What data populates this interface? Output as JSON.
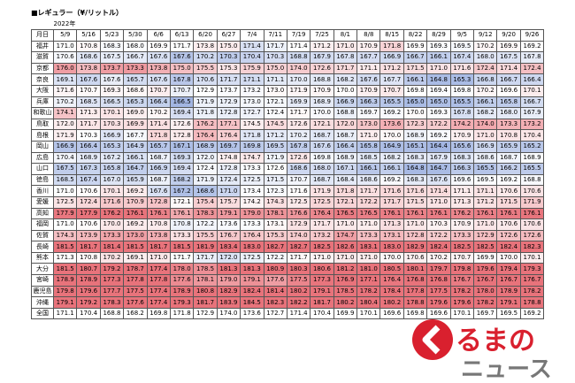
{
  "title": "■レギュラー（¥/リットル）",
  "year_label": "2022年",
  "corner_label": "月日",
  "columns": [
    "5/9",
    "5/16",
    "5/23",
    "5/30",
    "6/6",
    "6/13",
    "6/20",
    "6/27",
    "7/4",
    "7/11",
    "7/19",
    "7/25",
    "8/1",
    "8/8",
    "8/15",
    "8/22",
    "8/29",
    "9/5",
    "9/12",
    "9/20",
    "9/26"
  ],
  "rows": [
    {
      "name": "福井",
      "values": [
        "171.0",
        "170.8",
        "168.3",
        "168.0",
        "169.9",
        "171.7",
        "173.8",
        "175.0",
        "171.4",
        "171.7",
        "171.4",
        "171.2",
        "171.0",
        "170.9",
        "171.8",
        "169.9",
        "169.3",
        "169.5",
        "170.2",
        "169.9",
        "169.2"
      ]
    },
    {
      "name": "滋賀",
      "values": [
        "170.6",
        "168.6",
        "167.5",
        "166.7",
        "167.6",
        "167.6",
        "170.2",
        "170.3",
        "170.4",
        "170.3",
        "168.8",
        "167.9",
        "167.8",
        "167.7",
        "166.9",
        "166.7",
        "166.1",
        "167.4",
        "168.0",
        "167.5",
        "167.8"
      ]
    },
    {
      "name": "京都",
      "values": [
        "176.0",
        "173.8",
        "173.7",
        "173.3",
        "173.8",
        "175.0",
        "175.5",
        "175.3",
        "175.9",
        "175.0",
        "174.0",
        "172.6",
        "171.7",
        "171.1",
        "171.2",
        "171.5",
        "171.0",
        "171.6",
        "172.4",
        "171.4",
        "172.4"
      ]
    },
    {
      "name": "奈良",
      "values": [
        "169.1",
        "167.6",
        "167.6",
        "165.7",
        "167.6",
        "167.8",
        "170.6",
        "171.7",
        "171.1",
        "171.1",
        "170.0",
        "168.8",
        "168.2",
        "167.6",
        "167.7",
        "166.1",
        "164.8",
        "165.3",
        "166.8",
        "166.7",
        "166.4"
      ]
    },
    {
      "name": "大阪",
      "values": [
        "171.6",
        "170.7",
        "169.3",
        "168.6",
        "170.7",
        "170.7",
        "172.9",
        "173.7",
        "173.2",
        "173.0",
        "171.9",
        "170.9",
        "170.0",
        "170.9",
        "170.7",
        "169.8",
        "169.4",
        "169.8",
        "170.2",
        "169.6",
        "170.1"
      ]
    },
    {
      "name": "兵庫",
      "values": [
        "170.2",
        "168.5",
        "166.5",
        "165.3",
        "166.4",
        "166.5",
        "171.9",
        "172.9",
        "173.0",
        "172.1",
        "169.9",
        "168.9",
        "166.9",
        "166.3",
        "165.5",
        "165.0",
        "165.0",
        "165.5",
        "166.1",
        "165.8",
        "166.7"
      ]
    },
    {
      "name": "和歌山",
      "values": [
        "174.1",
        "171.3",
        "170.1",
        "169.0",
        "170.2",
        "169.4",
        "171.8",
        "172.8",
        "172.7",
        "172.4",
        "171.7",
        "170.0",
        "168.8",
        "169.7",
        "169.2",
        "170.0",
        "169.3",
        "167.8",
        "168.2",
        "168.0",
        "167.9"
      ]
    },
    {
      "name": "鳥取",
      "values": [
        "172.0",
        "171.7",
        "170.3",
        "169.9",
        "171.4",
        "172.6",
        "176.2",
        "177.1",
        "174.5",
        "174.5",
        "172.6",
        "172.1",
        "172.0",
        "173.0",
        "173.6",
        "172.3",
        "172.2",
        "174.2",
        "174.0",
        "173.3",
        "173.2"
      ]
    },
    {
      "name": "島根",
      "values": [
        "171.9",
        "170.3",
        "166.9",
        "167.7",
        "171.8",
        "172.8",
        "176.4",
        "176.4",
        "171.8",
        "171.2",
        "170.2",
        "168.7",
        "168.7",
        "171.0",
        "170.0",
        "168.9",
        "169.2",
        "170.9",
        "171.0",
        "170.8",
        "170.4"
      ]
    },
    {
      "name": "岡山",
      "values": [
        "166.9",
        "166.4",
        "165.3",
        "164.9",
        "165.7",
        "167.1",
        "168.9",
        "169.7",
        "169.8",
        "169.5",
        "167.8",
        "167.6",
        "166.4",
        "165.8",
        "164.9",
        "165.1",
        "164.4",
        "165.6",
        "166.9",
        "165.9",
        "165.2"
      ]
    },
    {
      "name": "広島",
      "values": [
        "170.4",
        "168.9",
        "167.2",
        "166.1",
        "168.7",
        "169.3",
        "172.0",
        "174.8",
        "174.7",
        "171.9",
        "172.6",
        "169.8",
        "168.9",
        "168.5",
        "168.2",
        "168.3",
        "167.9",
        "168.3",
        "168.6",
        "168.7",
        "168.9"
      ]
    },
    {
      "name": "山口",
      "values": [
        "167.5",
        "167.3",
        "165.8",
        "164.7",
        "166.9",
        "169.4",
        "172.4",
        "172.8",
        "173.3",
        "172.6",
        "168.6",
        "168.0",
        "167.1",
        "166.1",
        "166.1",
        "164.8",
        "164.7",
        "166.3",
        "165.5",
        "166.2",
        "165.5"
      ]
    },
    {
      "name": "徳島",
      "values": [
        "168.5",
        "167.4",
        "167.0",
        "165.9",
        "168.7",
        "168.2",
        "171.9",
        "172.4",
        "172.5",
        "171.5",
        "170.7",
        "168.7",
        "168.4",
        "168.6",
        "169.2",
        "168.3",
        "167.6",
        "169.6",
        "169.5",
        "169.2",
        "168.8"
      ]
    },
    {
      "name": "香川",
      "values": [
        "171.0",
        "170.6",
        "170.1",
        "169.2",
        "167.6",
        "167.2",
        "168.6",
        "171.0",
        "173.4",
        "172.3",
        "171.6",
        "171.9",
        "171.8",
        "171.7",
        "171.6",
        "171.6",
        "171.4",
        "171.1",
        "171.1",
        "170.6",
        "170.6"
      ]
    },
    {
      "name": "愛媛",
      "values": [
        "172.5",
        "172.4",
        "171.6",
        "170.9",
        "172.8",
        "172.1",
        "175.4",
        "175.7",
        "174.2",
        "174.3",
        "172.5",
        "172.5",
        "172.1",
        "172.2",
        "171.7",
        "171.5",
        "171.0",
        "171.3",
        "171.2",
        "171.5",
        "171.9"
      ]
    },
    {
      "name": "高知",
      "values": [
        "177.9",
        "177.9",
        "176.2",
        "176.1",
        "176.1",
        "176.1",
        "178.3",
        "179.1",
        "179.0",
        "178.1",
        "176.6",
        "176.4",
        "176.5",
        "176.5",
        "176.1",
        "176.1",
        "176.1",
        "176.2",
        "176.1",
        "176.1",
        "176.1"
      ]
    },
    {
      "name": "福岡",
      "values": [
        "171.0",
        "170.6",
        "170.0",
        "169.2",
        "170.8",
        "170.8",
        "172.2",
        "173.6",
        "173.3",
        "173.1",
        "172.9",
        "171.7",
        "171.0",
        "171.0",
        "171.3",
        "171.0",
        "170.3",
        "170.9",
        "171.0",
        "170.6",
        "170.6"
      ]
    },
    {
      "name": "佐賀",
      "values": [
        "174.3",
        "173.9",
        "173.3",
        "173.0",
        "173.8",
        "173.3",
        "175.5",
        "176.7",
        "176.4",
        "175.3",
        "174.0",
        "173.2",
        "174.7",
        "173.3",
        "173.1",
        "172.8",
        "172.2",
        "173.3",
        "172.9",
        "172.6",
        "172.6"
      ]
    },
    {
      "name": "長崎",
      "values": [
        "181.5",
        "181.7",
        "181.4",
        "181.5",
        "181.7",
        "181.5",
        "181.9",
        "183.4",
        "183.0",
        "182.7",
        "182.7",
        "182.5",
        "182.6",
        "183.1",
        "183.0",
        "182.9",
        "182.4",
        "182.5",
        "182.5",
        "182.4",
        "182.3"
      ]
    },
    {
      "name": "熊本",
      "values": [
        "171.3",
        "170.8",
        "170.2",
        "169.1",
        "171.0",
        "171.7",
        "171.7",
        "172.0",
        "172.5",
        "172.2",
        "171.7",
        "171.0",
        "171.0",
        "171.0",
        "170.0",
        "170.6",
        "170.2",
        "170.7",
        "169.9",
        "170.0",
        "170.1"
      ]
    },
    {
      "name": "大分",
      "values": [
        "181.5",
        "180.7",
        "179.2",
        "178.7",
        "177.4",
        "178.0",
        "178.5",
        "181.3",
        "181.3",
        "180.9",
        "180.3",
        "180.6",
        "181.2",
        "181.0",
        "180.5",
        "180.1",
        "179.7",
        "179.8",
        "179.6",
        "179.4",
        "179.3"
      ]
    },
    {
      "name": "宮崎",
      "values": [
        "178.9",
        "178.9",
        "177.3",
        "177.8",
        "177.8",
        "177.6",
        "178.1",
        "179.0",
        "179.1",
        "177.6",
        "177.5",
        "177.3",
        "176.9",
        "177.1",
        "176.4",
        "176.8",
        "176.8",
        "176.7",
        "176.7",
        "176.7",
        "176.7"
      ]
    },
    {
      "name": "鹿児島",
      "values": [
        "179.8",
        "179.6",
        "177.7",
        "177.5",
        "177.4",
        "178.9",
        "180.8",
        "182.9",
        "182.4",
        "181.4",
        "180.2",
        "179.1",
        "178.5",
        "178.2",
        "178.4",
        "177.8",
        "177.5",
        "178.2",
        "178.0",
        "178.9",
        "178.2"
      ]
    },
    {
      "name": "沖縄",
      "values": [
        "179.1",
        "179.2",
        "178.3",
        "177.6",
        "177.4",
        "179.3",
        "181.7",
        "183.9",
        "184.5",
        "182.3",
        "182.2",
        "181.7",
        "180.2",
        "180.4",
        "180.2",
        "178.8",
        "179.6",
        "179.6",
        "178.2",
        "179.1",
        "178.8"
      ]
    },
    {
      "name": "全国",
      "values": [
        "171.1",
        "170.4",
        "168.8",
        "168.2",
        "169.8",
        "171.8",
        "172.9",
        "174.0",
        "173.6",
        "172.7",
        "171.4",
        "170.4",
        "169.9",
        "170.1",
        "169.6",
        "169.8",
        "169.6",
        "170.1",
        "169.7",
        "169.5",
        "169.2"
      ]
    }
  ],
  "logo": {
    "line1": "るまの",
    "line2": "ニュース"
  }
}
